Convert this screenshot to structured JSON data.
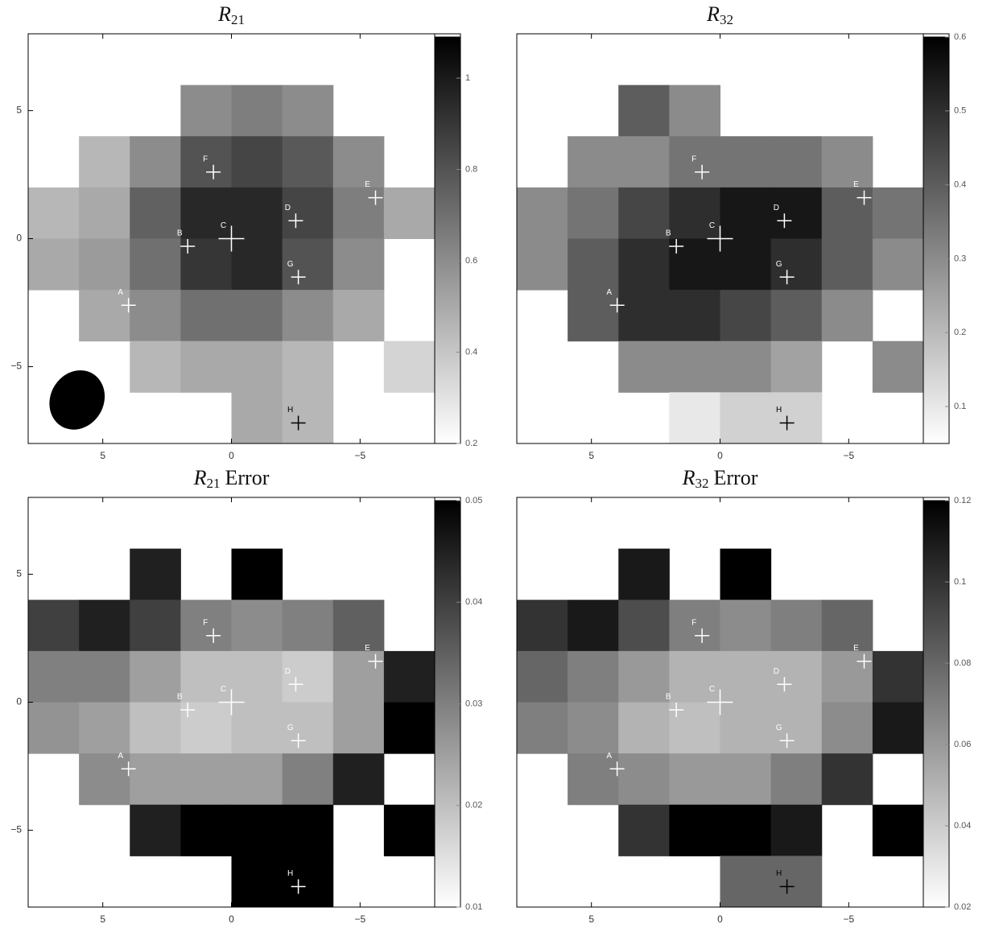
{
  "chart_data": [
    {
      "type": "image",
      "title": {
        "letter": "R",
        "subscript": "21"
      },
      "xlim": [
        7.9,
        -7.9
      ],
      "ylim": [
        -8,
        8
      ],
      "xticks": [
        5,
        0,
        {
          "value": -5,
          "label": "−5"
        }
      ],
      "yticks": [
        {
          "value": -5,
          "label": "−5"
        },
        0,
        5
      ],
      "clim": [
        0.2,
        1.09
      ],
      "cticks": [
        0.2,
        0.4,
        0.6,
        0.8,
        1
      ],
      "z": [
        [
          null,
          null,
          null,
          null,
          null,
          null,
          null,
          null
        ],
        [
          null,
          null,
          null,
          0.6,
          0.65,
          0.6,
          null,
          null
        ],
        [
          null,
          0.45,
          0.6,
          0.8,
          0.85,
          0.78,
          0.6,
          null
        ],
        [
          0.45,
          0.5,
          0.75,
          0.95,
          0.95,
          0.85,
          0.65,
          0.5
        ],
        [
          0.5,
          0.55,
          0.7,
          0.9,
          0.95,
          0.8,
          0.6,
          null
        ],
        [
          null,
          0.5,
          0.6,
          0.7,
          0.7,
          0.6,
          0.5,
          null
        ],
        [
          null,
          null,
          0.45,
          0.5,
          0.5,
          0.45,
          null,
          0.35
        ],
        [
          null,
          null,
          null,
          null,
          0.5,
          0.45,
          null,
          null
        ]
      ],
      "beam": true,
      "markers": [
        {
          "label": "A",
          "x": 4,
          "y": -2.6,
          "color": "#ffffff"
        },
        {
          "label": "B",
          "x": 1.7,
          "y": -0.3,
          "color": "#ffffff"
        },
        {
          "label": "C",
          "x": 0,
          "y": 0,
          "color": "#ffffff"
        },
        {
          "label": "D",
          "x": -2.5,
          "y": 0.7,
          "color": "#ffffff"
        },
        {
          "label": "E",
          "x": -5.6,
          "y": 1.6,
          "color": "#ffffff"
        },
        {
          "label": "F",
          "x": 0.7,
          "y": 2.6,
          "color": "#ffffff"
        },
        {
          "label": "G",
          "x": -2.6,
          "y": -1.5,
          "color": "#ffffff"
        },
        {
          "label": "H",
          "x": -2.6,
          "y": -7.2,
          "color": "#000000"
        }
      ]
    },
    {
      "type": "image",
      "title": {
        "letter": "R",
        "subscript": "32"
      },
      "xlim": [
        7.9,
        -7.9
      ],
      "ylim": [
        -8,
        8
      ],
      "xticks": [
        5,
        0,
        {
          "value": -5,
          "label": "−5"
        }
      ],
      "clim": [
        0.05,
        0.6
      ],
      "cticks": [
        0.1,
        0.2,
        0.3,
        0.4,
        0.5,
        0.6
      ],
      "z": [
        [
          null,
          null,
          null,
          null,
          null,
          null,
          null,
          null
        ],
        [
          null,
          null,
          0.4,
          0.3,
          null,
          null,
          null,
          null
        ],
        [
          null,
          0.3,
          0.3,
          0.35,
          0.35,
          0.35,
          0.3,
          null
        ],
        [
          0.3,
          0.35,
          0.45,
          0.5,
          0.55,
          0.55,
          0.4,
          0.35
        ],
        [
          0.3,
          0.4,
          0.5,
          0.55,
          0.55,
          0.5,
          0.4,
          0.3
        ],
        [
          null,
          0.4,
          0.5,
          0.5,
          0.45,
          0.4,
          0.3,
          null
        ],
        [
          null,
          null,
          0.3,
          0.3,
          0.3,
          0.25,
          null,
          0.3
        ],
        [
          null,
          null,
          null,
          0.1,
          0.15,
          0.15,
          null,
          null
        ]
      ],
      "markers": [
        {
          "label": "A",
          "x": 4,
          "y": -2.6,
          "color": "#ffffff"
        },
        {
          "label": "B",
          "x": 1.7,
          "y": -0.3,
          "color": "#ffffff"
        },
        {
          "label": "C",
          "x": 0,
          "y": 0,
          "color": "#ffffff"
        },
        {
          "label": "D",
          "x": -2.5,
          "y": 0.7,
          "color": "#ffffff"
        },
        {
          "label": "E",
          "x": -5.6,
          "y": 1.6,
          "color": "#ffffff"
        },
        {
          "label": "F",
          "x": 0.7,
          "y": 2.6,
          "color": "#ffffff"
        },
        {
          "label": "G",
          "x": -2.6,
          "y": -1.5,
          "color": "#ffffff"
        },
        {
          "label": "H",
          "x": -2.6,
          "y": -7.2,
          "color": "#000000"
        }
      ]
    },
    {
      "type": "image",
      "title": {
        "letter": "R",
        "subscript": "21",
        "suffix": "Error"
      },
      "xlim": [
        7.9,
        -7.9
      ],
      "ylim": [
        -8,
        8
      ],
      "xticks": [
        5,
        0,
        {
          "value": -5,
          "label": "−5"
        }
      ],
      "yticks": [
        {
          "value": -5,
          "label": "−5"
        },
        0,
        5
      ],
      "clim": [
        0.01,
        0.05
      ],
      "cticks": [
        0.01,
        0.02,
        0.03,
        0.04,
        0.05
      ],
      "z": [
        [
          null,
          null,
          null,
          null,
          null,
          null,
          null,
          null
        ],
        [
          null,
          null,
          0.045,
          null,
          0.05,
          null,
          null,
          null
        ],
        [
          0.04,
          0.045,
          0.04,
          0.03,
          0.028,
          0.03,
          0.035,
          null
        ],
        [
          0.03,
          0.03,
          0.025,
          0.02,
          0.02,
          0.018,
          0.025,
          0.045
        ],
        [
          0.027,
          0.025,
          0.02,
          0.018,
          0.02,
          0.02,
          0.025,
          0.05
        ],
        [
          null,
          0.028,
          0.025,
          0.025,
          0.025,
          0.03,
          0.045,
          null
        ],
        [
          null,
          null,
          0.045,
          0.05,
          0.05,
          0.05,
          null,
          0.05
        ],
        [
          null,
          null,
          null,
          null,
          0.05,
          0.05,
          null,
          null
        ]
      ],
      "markers": [
        {
          "label": "A",
          "x": 4,
          "y": -2.6,
          "color": "#ffffff"
        },
        {
          "label": "B",
          "x": 1.7,
          "y": -0.3,
          "color": "#ffffff"
        },
        {
          "label": "C",
          "x": 0,
          "y": 0,
          "color": "#ffffff"
        },
        {
          "label": "D",
          "x": -2.5,
          "y": 0.7,
          "color": "#ffffff"
        },
        {
          "label": "E",
          "x": -5.6,
          "y": 1.6,
          "color": "#ffffff"
        },
        {
          "label": "F",
          "x": 0.7,
          "y": 2.6,
          "color": "#ffffff"
        },
        {
          "label": "G",
          "x": -2.6,
          "y": -1.5,
          "color": "#ffffff"
        },
        {
          "label": "H",
          "x": -2.6,
          "y": -7.2,
          "color": "#ffffff"
        }
      ]
    },
    {
      "type": "image",
      "title": {
        "letter": "R",
        "subscript": "32",
        "suffix": "Error"
      },
      "xlim": [
        7.9,
        -7.9
      ],
      "ylim": [
        -8,
        8
      ],
      "xticks": [
        5,
        0,
        {
          "value": -5,
          "label": "−5"
        }
      ],
      "clim": [
        0.02,
        0.12
      ],
      "cticks": [
        0.02,
        0.04,
        0.06,
        0.08,
        0.1,
        0.12
      ],
      "z": [
        [
          null,
          null,
          null,
          null,
          null,
          null,
          null,
          null
        ],
        [
          null,
          null,
          0.11,
          null,
          0.12,
          null,
          null,
          null
        ],
        [
          0.1,
          0.11,
          0.09,
          0.07,
          0.065,
          0.07,
          0.08,
          null
        ],
        [
          0.08,
          0.07,
          0.06,
          0.05,
          0.05,
          0.05,
          0.06,
          0.1
        ],
        [
          0.07,
          0.065,
          0.05,
          0.045,
          0.05,
          0.05,
          0.065,
          0.11
        ],
        [
          null,
          0.07,
          0.065,
          0.06,
          0.06,
          0.07,
          0.1,
          null
        ],
        [
          null,
          null,
          0.1,
          0.12,
          0.12,
          0.11,
          null,
          0.12
        ],
        [
          null,
          null,
          null,
          null,
          0.08,
          0.08,
          null,
          null
        ]
      ],
      "markers": [
        {
          "label": "A",
          "x": 4,
          "y": -2.6,
          "color": "#ffffff"
        },
        {
          "label": "B",
          "x": 1.7,
          "y": -0.3,
          "color": "#ffffff"
        },
        {
          "label": "C",
          "x": 0,
          "y": 0,
          "color": "#ffffff"
        },
        {
          "label": "D",
          "x": -2.5,
          "y": 0.7,
          "color": "#ffffff"
        },
        {
          "label": "E",
          "x": -5.6,
          "y": 1.6,
          "color": "#ffffff"
        },
        {
          "label": "F",
          "x": 0.7,
          "y": 2.6,
          "color": "#ffffff"
        },
        {
          "label": "G",
          "x": -2.6,
          "y": -1.5,
          "color": "#ffffff"
        },
        {
          "label": "H",
          "x": -2.6,
          "y": -7.2,
          "color": "#000000"
        }
      ]
    }
  ]
}
